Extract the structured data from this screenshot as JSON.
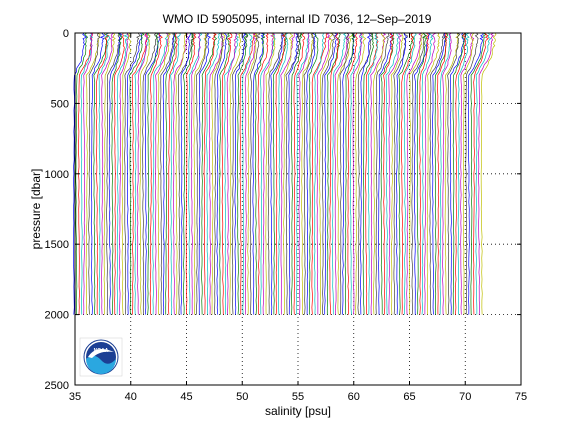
{
  "chart_data": {
    "type": "line",
    "title": "WMO ID 5905095, internal ID 7036, 12–Sep–2019",
    "xlabel": "salinity [psu]",
    "ylabel": "pressure [dbar]",
    "xlim": [
      35,
      75
    ],
    "ylim": [
      0,
      2500
    ],
    "y_reversed": true,
    "xticks": [
      "35",
      "40",
      "45",
      "50",
      "55",
      "60",
      "65",
      "70",
      "75"
    ],
    "yticks": [
      "0",
      "500",
      "1000",
      "1500",
      "2000",
      "2500"
    ],
    "grid": "dotted",
    "legend": "none",
    "profile_count": 160,
    "profile_offset_psu": 0.23,
    "first_profile_offset_psu": 0.0,
    "deep_salinity_base": 34.9,
    "surface_salinity_base": 35.7,
    "max_pressure": 2000,
    "series_colors": [
      "#0000ff",
      "#008000",
      "#ff0000",
      "#00bfbf",
      "#bf00bf",
      "#bfbf00",
      "#404040"
    ],
    "logo": {
      "name": "NOAA",
      "text": "NOAA",
      "colors": {
        "outer": "#1c3f94",
        "water": "#2aa7e0",
        "ring": "#ffffff"
      }
    }
  }
}
